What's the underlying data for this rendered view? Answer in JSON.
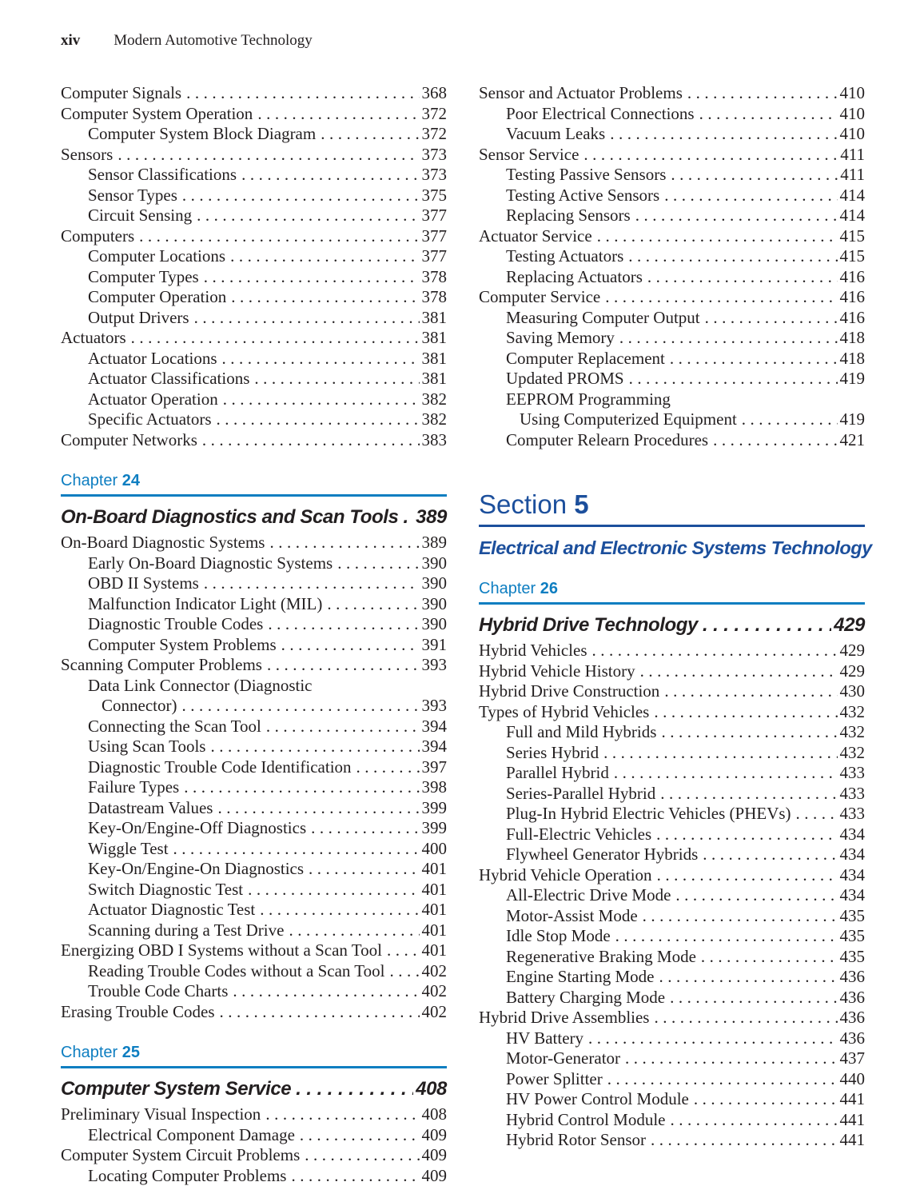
{
  "header": {
    "page_number": "xiv",
    "book_title": "Modern Automotive Technology"
  },
  "colors": {
    "chapter_blue": "#0e7ec1",
    "section_navy": "#1c4f9c",
    "text": "#231f20"
  },
  "left_column": {
    "blocks": [
      {
        "type": "entries",
        "entries": [
          {
            "level": 0,
            "title": "Computer Signals",
            "page": "368"
          },
          {
            "level": 0,
            "title": "Computer System Operation",
            "page": "372"
          },
          {
            "level": 1,
            "title": "Computer System Block Diagram",
            "page": "372"
          },
          {
            "level": 0,
            "title": "Sensors",
            "page": "373"
          },
          {
            "level": 1,
            "title": "Sensor Classifications",
            "page": "373"
          },
          {
            "level": 1,
            "title": "Sensor Types",
            "page": "375"
          },
          {
            "level": 1,
            "title": "Circuit Sensing",
            "page": "377"
          },
          {
            "level": 0,
            "title": "Computers",
            "page": "377"
          },
          {
            "level": 1,
            "title": "Computer Locations",
            "page": "377"
          },
          {
            "level": 1,
            "title": "Computer Types",
            "page": "378"
          },
          {
            "level": 1,
            "title": "Computer Operation",
            "page": "378"
          },
          {
            "level": 1,
            "title": "Output Drivers",
            "page": "381"
          },
          {
            "level": 0,
            "title": "Actuators",
            "page": "381"
          },
          {
            "level": 1,
            "title": "Actuator Locations",
            "page": "381"
          },
          {
            "level": 1,
            "title": "Actuator Classifications",
            "page": "381"
          },
          {
            "level": 1,
            "title": "Actuator Operation",
            "page": "382"
          },
          {
            "level": 1,
            "title": "Specific Actuators",
            "page": "382"
          },
          {
            "level": 0,
            "title": "Computer Networks",
            "page": "383"
          }
        ]
      },
      {
        "type": "chapter",
        "label": "Chapter",
        "number": "24",
        "title": "On-Board Diagnostics and Scan Tools",
        "page": "389",
        "entries": [
          {
            "level": 0,
            "title": "On-Board Diagnostic Systems",
            "page": "389"
          },
          {
            "level": 1,
            "title": "Early On-Board Diagnostic Systems",
            "page": "390"
          },
          {
            "level": 1,
            "title": "OBD II Systems",
            "page": "390"
          },
          {
            "level": 1,
            "title": "Malfunction Indicator Light (MIL)",
            "page": "390"
          },
          {
            "level": 1,
            "title": "Diagnostic Trouble Codes",
            "page": "390"
          },
          {
            "level": 1,
            "title": "Computer System Problems",
            "page": "391"
          },
          {
            "level": 0,
            "title": "Scanning Computer Problems",
            "page": "393"
          },
          {
            "level": 1,
            "wrap": "Data Link Connector (Diagnostic",
            "title": "Connector)",
            "page": "393"
          },
          {
            "level": 1,
            "title": "Connecting the Scan Tool",
            "page": "394"
          },
          {
            "level": 1,
            "title": "Using Scan Tools",
            "page": "394"
          },
          {
            "level": 1,
            "title": "Diagnostic Trouble Code Identification",
            "page": "397"
          },
          {
            "level": 1,
            "title": "Failure Types",
            "page": "398"
          },
          {
            "level": 1,
            "title": "Datastream Values",
            "page": "399"
          },
          {
            "level": 1,
            "title": "Key-On/Engine-Off Diagnostics",
            "page": "399"
          },
          {
            "level": 1,
            "title": "Wiggle Test",
            "page": "400"
          },
          {
            "level": 1,
            "title": "Key-On/Engine-On Diagnostics",
            "page": "401"
          },
          {
            "level": 1,
            "title": "Switch Diagnostic Test",
            "page": "401"
          },
          {
            "level": 1,
            "title": "Actuator Diagnostic Test",
            "page": "401"
          },
          {
            "level": 1,
            "title": "Scanning during a Test Drive",
            "page": "401"
          },
          {
            "level": 0,
            "title": "Energizing OBD I Systems without a Scan Tool",
            "page": "401"
          },
          {
            "level": 1,
            "title": "Reading Trouble Codes without a Scan Tool",
            "page": "402"
          },
          {
            "level": 1,
            "title": "Trouble Code Charts",
            "page": "402"
          },
          {
            "level": 0,
            "title": "Erasing Trouble Codes",
            "page": "402"
          }
        ]
      },
      {
        "type": "chapter",
        "label": "Chapter",
        "number": "25",
        "title": "Computer System Service",
        "page": "408",
        "entries": [
          {
            "level": 0,
            "title": "Preliminary Visual Inspection",
            "page": "408"
          },
          {
            "level": 1,
            "title": "Electrical Component Damage",
            "page": "409"
          },
          {
            "level": 0,
            "title": "Computer System Circuit Problems",
            "page": "409"
          },
          {
            "level": 1,
            "title": "Locating Computer Problems",
            "page": "409"
          }
        ]
      }
    ]
  },
  "right_column": {
    "blocks": [
      {
        "type": "entries",
        "entries": [
          {
            "level": 0,
            "title": "Sensor and Actuator Problems",
            "page": "410"
          },
          {
            "level": 1,
            "title": "Poor Electrical Connections",
            "page": "410"
          },
          {
            "level": 1,
            "title": "Vacuum Leaks",
            "page": "410"
          },
          {
            "level": 0,
            "title": "Sensor Service",
            "page": "411"
          },
          {
            "level": 1,
            "title": "Testing Passive Sensors",
            "page": "411"
          },
          {
            "level": 1,
            "title": "Testing Active Sensors",
            "page": "414"
          },
          {
            "level": 1,
            "title": "Replacing Sensors",
            "page": "414"
          },
          {
            "level": 0,
            "title": "Actuator Service",
            "page": "415"
          },
          {
            "level": 1,
            "title": "Testing Actuators",
            "page": "415"
          },
          {
            "level": 1,
            "title": "Replacing Actuators",
            "page": "416"
          },
          {
            "level": 0,
            "title": "Computer Service",
            "page": "416"
          },
          {
            "level": 1,
            "title": "Measuring Computer Output",
            "page": "416"
          },
          {
            "level": 1,
            "title": "Saving Memory",
            "page": "418"
          },
          {
            "level": 1,
            "title": "Computer Replacement",
            "page": "418"
          },
          {
            "level": 1,
            "title": "Updated PROMS",
            "page": "419"
          },
          {
            "level": 1,
            "wrap": "EEPROM Programming",
            "title": "Using Computerized Equipment",
            "page": "419"
          },
          {
            "level": 1,
            "title": "Computer Relearn Procedures",
            "page": "421"
          }
        ]
      },
      {
        "type": "section",
        "label": "Section",
        "number": "5",
        "title": "Electrical and Electronic Systems Technology"
      },
      {
        "type": "chapter",
        "label": "Chapter",
        "number": "26",
        "title": "Hybrid Drive Technology",
        "page": "429",
        "entries": [
          {
            "level": 0,
            "title": "Hybrid Vehicles",
            "page": "429"
          },
          {
            "level": 0,
            "title": "Hybrid Vehicle History",
            "page": "429"
          },
          {
            "level": 0,
            "title": "Hybrid Drive Construction",
            "page": "430"
          },
          {
            "level": 0,
            "title": "Types of Hybrid Vehicles",
            "page": "432"
          },
          {
            "level": 1,
            "title": "Full and Mild Hybrids",
            "page": "432"
          },
          {
            "level": 1,
            "title": "Series Hybrid",
            "page": "432"
          },
          {
            "level": 1,
            "title": "Parallel Hybrid",
            "page": "433"
          },
          {
            "level": 1,
            "title": "Series-Parallel Hybrid",
            "page": "433"
          },
          {
            "level": 1,
            "title": "Plug-In Hybrid Electric Vehicles (PHEVs)",
            "page": "433"
          },
          {
            "level": 1,
            "title": "Full-Electric Vehicles",
            "page": "434"
          },
          {
            "level": 1,
            "title": "Flywheel Generator Hybrids",
            "page": "434"
          },
          {
            "level": 0,
            "title": "Hybrid Vehicle Operation",
            "page": "434"
          },
          {
            "level": 1,
            "title": "All-Electric Drive Mode",
            "page": "434"
          },
          {
            "level": 1,
            "title": "Motor-Assist Mode",
            "page": "435"
          },
          {
            "level": 1,
            "title": "Idle Stop Mode",
            "page": "435"
          },
          {
            "level": 1,
            "title": "Regenerative Braking Mode",
            "page": "435"
          },
          {
            "level": 1,
            "title": "Engine Starting Mode",
            "page": "436"
          },
          {
            "level": 1,
            "title": "Battery Charging Mode",
            "page": "436"
          },
          {
            "level": 0,
            "title": "Hybrid Drive Assemblies",
            "page": "436"
          },
          {
            "level": 1,
            "title": "HV Battery",
            "page": "436"
          },
          {
            "level": 1,
            "title": "Motor-Generator",
            "page": "437"
          },
          {
            "level": 1,
            "title": "Power Splitter",
            "page": "440"
          },
          {
            "level": 1,
            "title": "HV Power Control Module",
            "page": "441"
          },
          {
            "level": 1,
            "title": "Hybrid Control Module",
            "page": "441"
          },
          {
            "level": 1,
            "title": "Hybrid Rotor Sensor",
            "page": "441"
          }
        ]
      }
    ]
  }
}
